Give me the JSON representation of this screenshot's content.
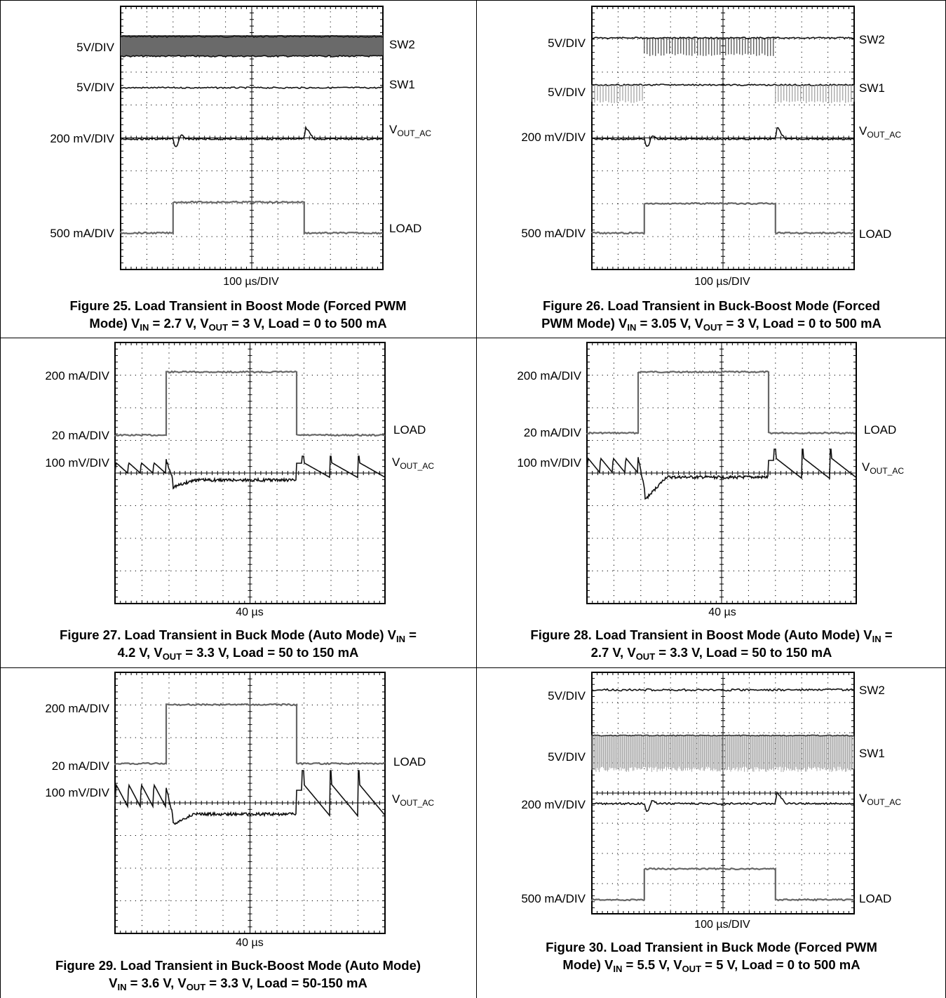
{
  "figures": [
    {
      "figure_number": "Figure 25.",
      "caption_line1": "Load Transient in Boost Mode (Forced PWM",
      "caption_line2_pre": "Mode) V",
      "caption_parts": [
        "IN",
        " = 2.7 V, V",
        "OUT",
        " = 3 V, Load = 0 to 500 mA"
      ],
      "xlabel": "100 µs/DIV",
      "channels": [
        {
          "name": "SW2",
          "scale": "5V/DIV"
        },
        {
          "name": "SW1",
          "scale": "5V/DIV"
        },
        {
          "name": "V",
          "sub": "OUT_AC",
          "scale": "200 mV/DIV"
        },
        {
          "name": "LOAD",
          "scale": "500 mA/DIV"
        }
      ]
    },
    {
      "figure_number": "Figure 26.",
      "caption_line1": "Load Transient in Buck-Boost Mode (Forced",
      "caption_line2_pre": "PWM Mode) V",
      "caption_parts": [
        "IN",
        " = 3.05 V, V",
        "OUT",
        " = 3 V, Load = 0 to 500 mA"
      ],
      "xlabel": "100 µs/DIV",
      "channels": [
        {
          "name": "SW2",
          "scale": "5V/DIV"
        },
        {
          "name": "SW1",
          "scale": "5V/DIV"
        },
        {
          "name": "V",
          "sub": "OUT_AC",
          "scale": "200 mV/DIV"
        },
        {
          "name": "LOAD",
          "scale": "500 mA/DIV"
        }
      ]
    },
    {
      "figure_number": "Figure 27.",
      "caption_line1_pre": "Load Transient in Buck Mode (Auto Mode) V",
      "caption_line1_sub": "IN",
      "caption_line1_post": " =",
      "caption_line2": [
        "4.2 V, V",
        "OUT",
        " = 3.3 V, Load = 50 to 150 mA"
      ],
      "xlabel": "40 µs",
      "channels": [
        {
          "name": "",
          "scale": "200 mA/DIV"
        },
        {
          "name": "LOAD",
          "scale": "20 mA/DIV"
        },
        {
          "name": "V",
          "sub": "OUT_AC",
          "scale": "100 mV/DIV"
        }
      ]
    },
    {
      "figure_number": "Figure 28.",
      "caption_line1_pre": "Load Transient in Boost Mode (Auto Mode) V",
      "caption_line1_sub": "IN",
      "caption_line1_post": " =",
      "caption_line2": [
        "2.7 V, V",
        "OUT",
        " = 3.3 V, Load = 50 to 150 mA"
      ],
      "xlabel": "40 µs",
      "channels": [
        {
          "name": "",
          "scale": "200 mA/DIV"
        },
        {
          "name": "LOAD",
          "scale": "20 mA/DIV"
        },
        {
          "name": "V",
          "sub": "OUT_AC",
          "scale": "100 mV/DIV"
        }
      ]
    },
    {
      "figure_number": "Figure 29.",
      "caption_line1": "Load Transient in Buck-Boost Mode (Auto Mode)",
      "caption_line2": [
        "V",
        "IN",
        " = 3.6 V, V",
        "OUT",
        " = 3.3 V, Load = 50-150 mA"
      ],
      "xlabel": "40 µs",
      "channels": [
        {
          "name": "",
          "scale": "200 mA/DIV"
        },
        {
          "name": "LOAD",
          "scale": "20 mA/DIV"
        },
        {
          "name": "V",
          "sub": "OUT_AC",
          "scale": "100 mV/DIV"
        }
      ]
    },
    {
      "figure_number": "Figure 30.",
      "caption_line1": "Load Transient in Buck Mode (Forced PWM",
      "caption_line2_pre": "Mode) V",
      "caption_parts": [
        "IN",
        " = 5.5 V, V",
        "OUT",
        " = 5 V, Load = 0 to 500 mA"
      ],
      "xlabel": "100 µs/DIV",
      "channels": [
        {
          "name": "SW2",
          "scale": "5V/DIV"
        },
        {
          "name": "SW1",
          "scale": "5V/DIV"
        },
        {
          "name": "V",
          "sub": "OUT_AC",
          "scale": "200 mV/DIV"
        },
        {
          "name": "LOAD",
          "scale": "500 mA/DIV"
        }
      ]
    }
  ],
  "chart_data": [
    {
      "type": "line",
      "title": "Figure 25. Load Transient in Boost Mode (Forced PWM Mode) VIN = 2.7 V, VOUT = 3 V, Load = 0 to 500 mA",
      "xlabel": "100 µs/DIV",
      "x_divisions": 10,
      "y_divisions": 8,
      "series": [
        {
          "name": "SW2",
          "scale": "5V/DIV",
          "behavior": "switching",
          "switching_window_div": [
            0,
            10
          ]
        },
        {
          "name": "SW1",
          "scale": "5V/DIV",
          "behavior": "static high"
        },
        {
          "name": "VOUT_AC",
          "scale": "200 mV/DIV",
          "undershoot_at_div": 2.0,
          "overshoot_at_div": 7.0
        },
        {
          "name": "LOAD",
          "scale": "500 mA/DIV",
          "step_high_div": [
            2.0,
            7.0
          ],
          "low_mA": 0,
          "high_mA": 500
        }
      ]
    },
    {
      "type": "line",
      "title": "Figure 26. Load Transient in Buck-Boost Mode (Forced PWM Mode) VIN = 3.05 V, VOUT = 3 V, Load = 0 to 500 mA",
      "xlabel": "100 µs/DIV",
      "x_divisions": 10,
      "y_divisions": 8,
      "series": [
        {
          "name": "SW2",
          "scale": "5V/DIV",
          "behavior": "switching",
          "switching_window_div": [
            2.0,
            7.0
          ]
        },
        {
          "name": "SW1",
          "scale": "5V/DIV",
          "behavior": "switching",
          "switching_window_div": [
            [
              0,
              2.0
            ],
            [
              7.0,
              10
            ]
          ]
        },
        {
          "name": "VOUT_AC",
          "scale": "200 mV/DIV",
          "undershoot_at_div": 2.0,
          "overshoot_at_div": 7.0
        },
        {
          "name": "LOAD",
          "scale": "500 mA/DIV",
          "step_high_div": [
            2.0,
            7.0
          ],
          "low_mA": 0,
          "high_mA": 500
        }
      ]
    },
    {
      "type": "line",
      "title": "Figure 27. Load Transient in Buck Mode (Auto Mode) VIN = 4.2 V, VOUT = 3.3 V, Load = 50 to 150 mA",
      "xlabel": "40 µs",
      "x_divisions": 10,
      "y_divisions": 8,
      "series": [
        {
          "name": "LOAD",
          "scale": "20 mA/DIV",
          "step_high_div": [
            1.9,
            6.9
          ],
          "low_mA": 50,
          "high_mA": 150
        },
        {
          "name": "VOUT_AC",
          "scale": "100 mV/DIV",
          "behavior": "ripple then dip and recovery"
        }
      ]
    },
    {
      "type": "line",
      "title": "Figure 28. Load Transient in Boost Mode (Auto Mode) VIN = 2.7 V, VOUT = 3.3 V, Load = 50 to 150 mA",
      "xlabel": "40 µs",
      "x_divisions": 10,
      "y_divisions": 8,
      "series": [
        {
          "name": "LOAD",
          "scale": "20 mA/DIV",
          "step_high_div": [
            1.9,
            6.8
          ],
          "low_mA": 50,
          "high_mA": 150
        },
        {
          "name": "VOUT_AC",
          "scale": "100 mV/DIV",
          "behavior": "ripple then dip and recovery"
        }
      ]
    },
    {
      "type": "line",
      "title": "Figure 29. Load Transient in Buck-Boost Mode (Auto Mode) VIN = 3.6 V, VOUT = 3.3 V, Load = 50-150 mA",
      "xlabel": "40 µs",
      "x_divisions": 10,
      "y_divisions": 8,
      "series": [
        {
          "name": "LOAD",
          "scale": "20 mA/DIV",
          "step_high_div": [
            1.9,
            6.9
          ],
          "low_mA": 50,
          "high_mA": 150
        },
        {
          "name": "VOUT_AC",
          "scale": "100 mV/DIV",
          "behavior": "ripple then dip and recovery"
        }
      ]
    },
    {
      "type": "line",
      "title": "Figure 30. Load Transient in Buck Mode (Forced PWM Mode) VIN = 5.5 V, VOUT = 5 V, Load = 0 to 500 mA",
      "xlabel": "100 µs/DIV",
      "x_divisions": 10,
      "y_divisions": 8,
      "series": [
        {
          "name": "SW2",
          "scale": "5V/DIV",
          "behavior": "static high"
        },
        {
          "name": "SW1",
          "scale": "5V/DIV",
          "behavior": "switching",
          "switching_window_div": [
            0,
            10
          ]
        },
        {
          "name": "VOUT_AC",
          "scale": "200 mV/DIV",
          "undershoot_at_div": 2.0,
          "overshoot_at_div": 7.0
        },
        {
          "name": "LOAD",
          "scale": "500 mA/DIV",
          "step_high_div": [
            2.0,
            7.0
          ],
          "low_mA": 0,
          "high_mA": 500
        }
      ]
    }
  ]
}
